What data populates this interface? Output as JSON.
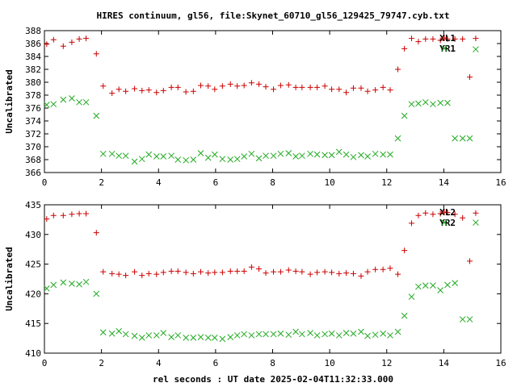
{
  "chart_data": {
    "type": "scatter",
    "title": "HIRES continuum, gl56, file:Skynet_60710_gl56_129425_79747.cyb.txt",
    "xlabel": "rel seconds : UT date 2025-02-04T11:32:33.000",
    "colors": {
      "red": "#cc0000",
      "green": "#22aa22"
    },
    "panels": [
      {
        "ylabel": "Uncalibrated",
        "xlim": [
          0,
          16
        ],
        "ylim": [
          366,
          388
        ],
        "xticks": [
          0,
          2,
          4,
          6,
          8,
          10,
          12,
          14,
          16
        ],
        "yticks": [
          366,
          368,
          370,
          372,
          374,
          376,
          378,
          380,
          382,
          384,
          386,
          388
        ],
        "series": [
          {
            "name": "XL1",
            "marker": "plus",
            "color": "#cc0000",
            "x": [
              0.08,
              0.32,
              0.66,
              0.96,
              1.22,
              1.46,
              1.82,
              2.06,
              2.37,
              2.61,
              2.85,
              3.16,
              3.42,
              3.66,
              3.93,
              4.17,
              4.45,
              4.68,
              4.96,
              5.22,
              5.48,
              5.74,
              5.97,
              6.24,
              6.52,
              6.76,
              7.0,
              7.26,
              7.52,
              7.76,
              8.03,
              8.28,
              8.56,
              8.81,
              9.03,
              9.32,
              9.56,
              9.83,
              10.07,
              10.33,
              10.58,
              10.83,
              11.1,
              11.33,
              11.6,
              11.87,
              12.12,
              12.39,
              12.62,
              12.87,
              13.11,
              13.36,
              13.62,
              13.88,
              14.13,
              14.39,
              14.66,
              14.91,
              15.12
            ],
            "y": [
              385.9,
              386.6,
              385.6,
              386.2,
              386.7,
              386.8,
              384.4,
              379.4,
              378.3,
              378.9,
              378.6,
              379.0,
              378.7,
              378.8,
              378.4,
              378.7,
              379.2,
              379.2,
              378.5,
              378.6,
              379.5,
              379.4,
              378.9,
              379.4,
              379.7,
              379.4,
              379.5,
              379.9,
              379.7,
              379.3,
              378.9,
              379.5,
              379.6,
              379.2,
              379.2,
              379.2,
              379.2,
              379.4,
              378.9,
              378.9,
              378.4,
              379.1,
              379.1,
              378.6,
              378.8,
              379.2,
              378.8,
              382.0,
              385.2,
              386.8,
              386.3,
              386.7,
              386.7,
              386.5,
              386.7,
              386.7,
              386.7,
              380.8,
              386.8
            ],
            "label_pos": "top-right"
          },
          {
            "name": "YR1",
            "marker": "cross",
            "color": "#22aa22",
            "x": [
              0.08,
              0.32,
              0.66,
              0.96,
              1.22,
              1.46,
              1.82,
              2.06,
              2.37,
              2.61,
              2.85,
              3.16,
              3.42,
              3.66,
              3.93,
              4.17,
              4.45,
              4.68,
              4.96,
              5.22,
              5.48,
              5.74,
              5.97,
              6.24,
              6.52,
              6.76,
              7.0,
              7.26,
              7.52,
              7.76,
              8.03,
              8.28,
              8.56,
              8.81,
              9.03,
              9.32,
              9.56,
              9.83,
              10.07,
              10.33,
              10.58,
              10.83,
              11.1,
              11.33,
              11.6,
              11.87,
              12.12,
              12.39,
              12.62,
              12.87,
              13.11,
              13.36,
              13.62,
              13.88,
              14.13,
              14.39,
              14.66,
              14.91,
              15.12
            ],
            "y": [
              376.5,
              376.6,
              377.3,
              377.5,
              376.9,
              376.9,
              374.8,
              368.9,
              368.9,
              368.6,
              368.6,
              367.7,
              368.1,
              368.8,
              368.5,
              368.5,
              368.6,
              368.0,
              367.9,
              368.0,
              369.0,
              368.3,
              368.8,
              368.1,
              368.0,
              368.1,
              368.5,
              368.9,
              368.2,
              368.6,
              368.6,
              368.9,
              369.0,
              368.5,
              368.6,
              368.9,
              368.8,
              368.7,
              368.7,
              369.2,
              368.8,
              368.4,
              368.7,
              368.5,
              368.9,
              368.8,
              368.8,
              371.3,
              374.8,
              376.6,
              376.7,
              376.9,
              376.6,
              376.8,
              376.8,
              371.3,
              371.3,
              371.3,
              385.1
            ],
            "label_pos": "top-right"
          }
        ]
      },
      {
        "ylabel": "Uncalibrated",
        "xlim": [
          0,
          16
        ],
        "ylim": [
          410,
          435
        ],
        "xticks": [
          0,
          2,
          4,
          6,
          8,
          10,
          12,
          14,
          16
        ],
        "yticks": [
          410,
          415,
          420,
          425,
          430,
          435
        ],
        "series": [
          {
            "name": "XL2",
            "marker": "plus",
            "color": "#cc0000",
            "x": [
              0.08,
              0.32,
              0.66,
              0.96,
              1.22,
              1.46,
              1.82,
              2.06,
              2.37,
              2.61,
              2.85,
              3.16,
              3.42,
              3.66,
              3.93,
              4.17,
              4.45,
              4.68,
              4.96,
              5.22,
              5.48,
              5.74,
              5.97,
              6.24,
              6.52,
              6.76,
              7.0,
              7.26,
              7.52,
              7.76,
              8.03,
              8.28,
              8.56,
              8.81,
              9.03,
              9.32,
              9.56,
              9.83,
              10.07,
              10.33,
              10.58,
              10.83,
              11.1,
              11.33,
              11.6,
              11.87,
              12.12,
              12.39,
              12.62,
              12.87,
              13.11,
              13.36,
              13.62,
              13.88,
              14.13,
              14.39,
              14.66,
              14.91,
              15.12
            ],
            "y": [
              432.6,
              433.2,
              433.2,
              433.4,
              433.5,
              433.5,
              430.3,
              423.7,
              423.4,
              423.3,
              423.1,
              423.7,
              423.1,
              423.4,
              423.3,
              423.6,
              423.8,
              423.8,
              423.6,
              423.4,
              423.7,
              423.5,
              423.6,
              423.6,
              423.8,
              423.8,
              423.8,
              424.5,
              424.2,
              423.5,
              423.7,
              423.7,
              424.0,
              423.8,
              423.7,
              423.3,
              423.6,
              423.7,
              423.6,
              423.4,
              423.5,
              423.4,
              423.0,
              423.7,
              424.1,
              424.1,
              424.3,
              423.3,
              427.3,
              431.9,
              433.2,
              433.6,
              433.4,
              433.5,
              433.7,
              433.4,
              432.8,
              425.5,
              433.6
            ],
            "label_pos": "top-right"
          },
          {
            "name": "YR2",
            "marker": "cross",
            "color": "#22aa22",
            "x": [
              0.08,
              0.32,
              0.66,
              0.96,
              1.22,
              1.46,
              1.82,
              2.06,
              2.37,
              2.61,
              2.85,
              3.16,
              3.42,
              3.66,
              3.93,
              4.17,
              4.45,
              4.68,
              4.96,
              5.22,
              5.48,
              5.74,
              5.97,
              6.24,
              6.52,
              6.76,
              7.0,
              7.26,
              7.52,
              7.76,
              8.03,
              8.28,
              8.56,
              8.81,
              9.03,
              9.32,
              9.56,
              9.83,
              10.07,
              10.33,
              10.58,
              10.83,
              11.1,
              11.33,
              11.6,
              11.87,
              12.12,
              12.39,
              12.62,
              12.87,
              13.11,
              13.36,
              13.62,
              13.88,
              14.13,
              14.39,
              14.66,
              14.91,
              15.12
            ],
            "y": [
              420.9,
              421.5,
              421.9,
              421.7,
              421.6,
              422.0,
              420.0,
              413.5,
              413.3,
              413.7,
              413.2,
              412.9,
              412.6,
              413.0,
              413.0,
              413.4,
              412.7,
              413.0,
              412.6,
              412.6,
              412.7,
              412.6,
              412.6,
              412.4,
              412.7,
              413.0,
              413.2,
              413.0,
              413.2,
              413.2,
              413.2,
              413.3,
              413.1,
              413.6,
              413.2,
              413.4,
              413.0,
              413.2,
              413.3,
              413.0,
              413.4,
              413.3,
              413.6,
              412.9,
              413.1,
              413.3,
              413.0,
              413.6,
              416.3,
              419.5,
              421.2,
              421.4,
              421.4,
              420.6,
              421.5,
              421.8,
              415.7,
              415.7,
              432.0
            ],
            "label_pos": "top-right"
          }
        ]
      }
    ]
  }
}
